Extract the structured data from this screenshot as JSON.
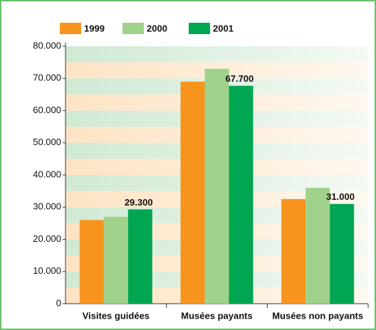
{
  "chart_data": {
    "type": "bar",
    "categories": [
      "Visites guidées",
      "Musées payants",
      "Musées non payants"
    ],
    "series": [
      {
        "name": "1999",
        "color": "#f7941d",
        "values": [
          26000,
          69000,
          32500
        ]
      },
      {
        "name": "2000",
        "color": "#a1d28b",
        "values": [
          27000,
          73000,
          36000
        ]
      },
      {
        "name": "2001",
        "color": "#00a651",
        "values": [
          29300,
          67700,
          31000
        ],
        "value_labels": [
          "29.300",
          "67.700",
          "31.000"
        ]
      }
    ],
    "ylim": [
      0,
      80000
    ],
    "yticks": [
      0,
      {
        "value": 10000,
        "label": "10.000"
      },
      {
        "value": 20000,
        "label": "20.000"
      },
      {
        "value": 30000,
        "label": "30.000"
      },
      {
        "value": 40000,
        "label": "40.000"
      },
      {
        "value": 50000,
        "label": "50.000"
      },
      {
        "value": 60000,
        "label": "60.000"
      },
      {
        "value": 70000,
        "label": "70.000"
      },
      {
        "value": 80000,
        "label": "80.000"
      }
    ],
    "legend": "top"
  }
}
